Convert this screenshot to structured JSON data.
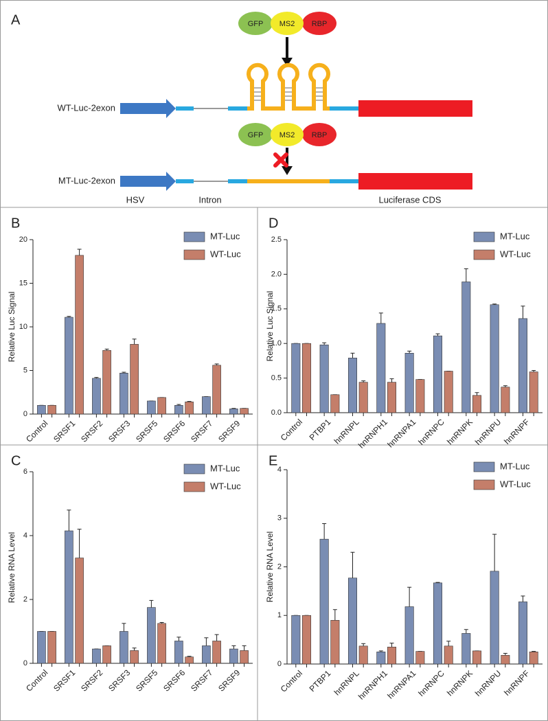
{
  "diagram": {
    "panel": "A",
    "fusion_top": [
      "GFP",
      "MS2",
      "RBP"
    ],
    "fusion_bottom": [
      "GFP",
      "MS2",
      "RBP"
    ],
    "wt_label": "WT-Luc-2exon",
    "mt_label": "MT-Luc-2exon",
    "labels": [
      "HSV",
      "Intron",
      "Luciferase CDS"
    ]
  },
  "chart_data": [
    {
      "type": "bar",
      "panel": "B",
      "ylabel": "Relative Luc Signal",
      "categories": [
        "Control",
        "SRSF1",
        "SRSF2",
        "SRSF3",
        "SRSF5",
        "SRSF6",
        "SRSF7",
        "SRSF9"
      ],
      "series": [
        {
          "name": "MT-Luc",
          "color": "#7a8db3",
          "values": [
            1.0,
            11.1,
            4.1,
            4.7,
            1.5,
            1.0,
            2.0,
            0.6
          ],
          "errors": [
            0,
            0.1,
            0.1,
            0.1,
            0,
            0.1,
            0,
            0.05
          ]
        },
        {
          "name": "WT-Luc",
          "color": "#c47e6a",
          "values": [
            1.0,
            18.2,
            7.3,
            8.0,
            1.9,
            1.4,
            5.6,
            0.65
          ],
          "errors": [
            0,
            0.7,
            0.15,
            0.6,
            0,
            0.05,
            0.15,
            0
          ]
        }
      ],
      "ylim": [
        0,
        20
      ],
      "yticks": [
        0,
        5,
        10,
        15,
        20
      ],
      "legend": "upper right"
    },
    {
      "type": "bar",
      "panel": "C",
      "ylabel": "Relative RNA Level",
      "categories": [
        "Control",
        "SRSF1",
        "SRSF2",
        "SRSF3",
        "SRSF5",
        "SRSF6",
        "SRSF7",
        "SRSF9"
      ],
      "series": [
        {
          "name": "MT-Luc",
          "color": "#7a8db3",
          "values": [
            1.0,
            4.15,
            0.45,
            1.0,
            1.75,
            0.7,
            0.55,
            0.45
          ],
          "errors": [
            0,
            0.65,
            0,
            0.25,
            0.22,
            0.12,
            0.25,
            0.1
          ]
        },
        {
          "name": "WT-Luc",
          "color": "#c47e6a",
          "values": [
            1.0,
            3.3,
            0.55,
            0.4,
            1.25,
            0.2,
            0.7,
            0.4
          ],
          "errors": [
            0,
            0.9,
            0,
            0.08,
            0.03,
            0.02,
            0.2,
            0.15
          ]
        }
      ],
      "ylim": [
        0,
        6
      ],
      "yticks": [
        0,
        2,
        4,
        6
      ],
      "legend": "upper right"
    },
    {
      "type": "bar",
      "panel": "D",
      "ylabel": "Relative Luc Signal",
      "categories": [
        "Control",
        "PTBP1",
        "hnRNPL",
        "hnRNPH1",
        "hnRNPA1",
        "hnRNPC",
        "hnRNPK",
        "hnRNPU",
        "hnRNPF"
      ],
      "series": [
        {
          "name": "MT-Luc",
          "color": "#7a8db3",
          "values": [
            1.0,
            0.98,
            0.79,
            1.29,
            0.86,
            1.11,
            1.89,
            1.56,
            1.36
          ],
          "errors": [
            0,
            0.03,
            0.07,
            0.15,
            0.03,
            0.03,
            0.19,
            0.01,
            0.18
          ]
        },
        {
          "name": "WT-Luc",
          "color": "#c47e6a",
          "values": [
            1.0,
            0.26,
            0.44,
            0.44,
            0.48,
            0.6,
            0.25,
            0.37,
            0.59
          ],
          "errors": [
            0,
            0,
            0.02,
            0.05,
            0,
            0,
            0.04,
            0.02,
            0.02
          ]
        }
      ],
      "ylim": [
        0,
        2.5
      ],
      "yticks": [
        {
          "value": 0,
          "label": "0.0"
        },
        0.5,
        {
          "value": 1,
          "label": "1.0"
        },
        1.5,
        {
          "value": 2,
          "label": "2.0"
        },
        2.5
      ],
      "legend": "upper right"
    },
    {
      "type": "bar",
      "panel": "E",
      "ylabel": "Relative RNA Level",
      "categories": [
        "Control",
        "PTBP1",
        "hnRNPL",
        "hnRNPH1",
        "hnRNPA1",
        "hnRNPC",
        "hnRNPK",
        "hnRNPU",
        "hnRNPF"
      ],
      "series": [
        {
          "name": "MT-Luc",
          "color": "#7a8db3",
          "values": [
            1.0,
            2.57,
            1.77,
            0.25,
            1.18,
            1.67,
            0.63,
            1.91,
            1.28
          ],
          "errors": [
            0,
            0.32,
            0.53,
            0.02,
            0.4,
            0.01,
            0.08,
            0.76,
            0.12
          ]
        },
        {
          "name": "WT-Luc",
          "color": "#c47e6a",
          "values": [
            1.0,
            0.9,
            0.37,
            0.35,
            0.26,
            0.37,
            0.27,
            0.18,
            0.25
          ],
          "errors": [
            0,
            0.22,
            0.05,
            0.08,
            0,
            0.1,
            0,
            0.04,
            0.01
          ]
        }
      ],
      "ylim": [
        0,
        4
      ],
      "yticks": [
        0,
        1,
        2,
        3,
        4
      ],
      "legend": "upper right"
    }
  ]
}
